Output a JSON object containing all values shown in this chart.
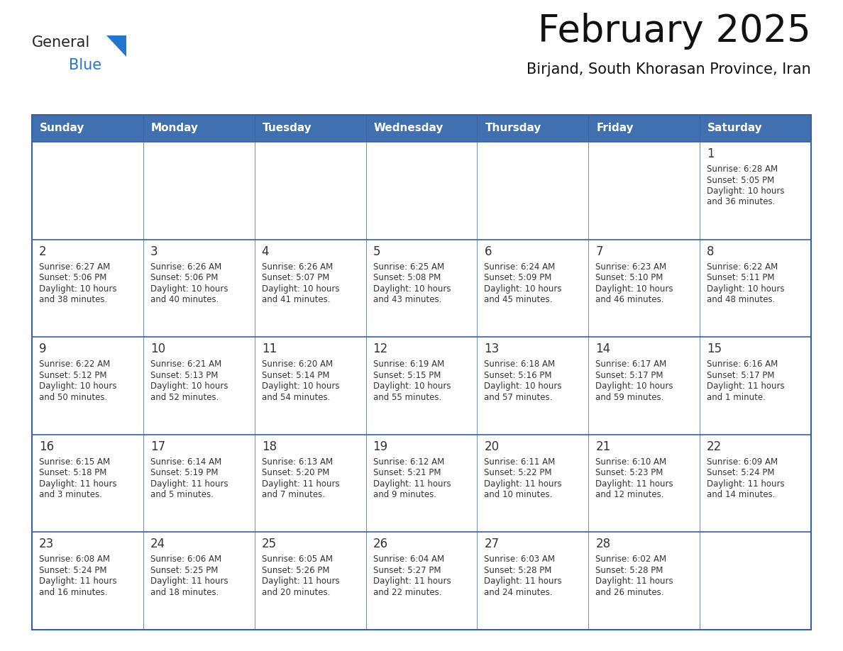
{
  "title": "February 2025",
  "subtitle": "Birjand, South Khorasan Province, Iran",
  "header_bg": "#4070B0",
  "header_text": "#FFFFFF",
  "header_days": [
    "Sunday",
    "Monday",
    "Tuesday",
    "Wednesday",
    "Thursday",
    "Friday",
    "Saturday"
  ],
  "row_bg": "#FFFFFF",
  "row_separator_color": "#3A5FA0",
  "outer_border_color": "#3A5FA0",
  "day_number_color": "#333333",
  "info_text_color": "#333333",
  "logo_general_color": "#222222",
  "logo_blue_color": "#2277CC",
  "days": [
    {
      "day": 1,
      "col": 6,
      "row": 0,
      "sunrise": "6:28 AM",
      "sunset": "5:05 PM",
      "daylight": "10 hours and 36 minutes."
    },
    {
      "day": 2,
      "col": 0,
      "row": 1,
      "sunrise": "6:27 AM",
      "sunset": "5:06 PM",
      "daylight": "10 hours and 38 minutes."
    },
    {
      "day": 3,
      "col": 1,
      "row": 1,
      "sunrise": "6:26 AM",
      "sunset": "5:06 PM",
      "daylight": "10 hours and 40 minutes."
    },
    {
      "day": 4,
      "col": 2,
      "row": 1,
      "sunrise": "6:26 AM",
      "sunset": "5:07 PM",
      "daylight": "10 hours and 41 minutes."
    },
    {
      "day": 5,
      "col": 3,
      "row": 1,
      "sunrise": "6:25 AM",
      "sunset": "5:08 PM",
      "daylight": "10 hours and 43 minutes."
    },
    {
      "day": 6,
      "col": 4,
      "row": 1,
      "sunrise": "6:24 AM",
      "sunset": "5:09 PM",
      "daylight": "10 hours and 45 minutes."
    },
    {
      "day": 7,
      "col": 5,
      "row": 1,
      "sunrise": "6:23 AM",
      "sunset": "5:10 PM",
      "daylight": "10 hours and 46 minutes."
    },
    {
      "day": 8,
      "col": 6,
      "row": 1,
      "sunrise": "6:22 AM",
      "sunset": "5:11 PM",
      "daylight": "10 hours and 48 minutes."
    },
    {
      "day": 9,
      "col": 0,
      "row": 2,
      "sunrise": "6:22 AM",
      "sunset": "5:12 PM",
      "daylight": "10 hours and 50 minutes."
    },
    {
      "day": 10,
      "col": 1,
      "row": 2,
      "sunrise": "6:21 AM",
      "sunset": "5:13 PM",
      "daylight": "10 hours and 52 minutes."
    },
    {
      "day": 11,
      "col": 2,
      "row": 2,
      "sunrise": "6:20 AM",
      "sunset": "5:14 PM",
      "daylight": "10 hours and 54 minutes."
    },
    {
      "day": 12,
      "col": 3,
      "row": 2,
      "sunrise": "6:19 AM",
      "sunset": "5:15 PM",
      "daylight": "10 hours and 55 minutes."
    },
    {
      "day": 13,
      "col": 4,
      "row": 2,
      "sunrise": "6:18 AM",
      "sunset": "5:16 PM",
      "daylight": "10 hours and 57 minutes."
    },
    {
      "day": 14,
      "col": 5,
      "row": 2,
      "sunrise": "6:17 AM",
      "sunset": "5:17 PM",
      "daylight": "10 hours and 59 minutes."
    },
    {
      "day": 15,
      "col": 6,
      "row": 2,
      "sunrise": "6:16 AM",
      "sunset": "5:17 PM",
      "daylight": "11 hours and 1 minute."
    },
    {
      "day": 16,
      "col": 0,
      "row": 3,
      "sunrise": "6:15 AM",
      "sunset": "5:18 PM",
      "daylight": "11 hours and 3 minutes."
    },
    {
      "day": 17,
      "col": 1,
      "row": 3,
      "sunrise": "6:14 AM",
      "sunset": "5:19 PM",
      "daylight": "11 hours and 5 minutes."
    },
    {
      "day": 18,
      "col": 2,
      "row": 3,
      "sunrise": "6:13 AM",
      "sunset": "5:20 PM",
      "daylight": "11 hours and 7 minutes."
    },
    {
      "day": 19,
      "col": 3,
      "row": 3,
      "sunrise": "6:12 AM",
      "sunset": "5:21 PM",
      "daylight": "11 hours and 9 minutes."
    },
    {
      "day": 20,
      "col": 4,
      "row": 3,
      "sunrise": "6:11 AM",
      "sunset": "5:22 PM",
      "daylight": "11 hours and 10 minutes."
    },
    {
      "day": 21,
      "col": 5,
      "row": 3,
      "sunrise": "6:10 AM",
      "sunset": "5:23 PM",
      "daylight": "11 hours and 12 minutes."
    },
    {
      "day": 22,
      "col": 6,
      "row": 3,
      "sunrise": "6:09 AM",
      "sunset": "5:24 PM",
      "daylight": "11 hours and 14 minutes."
    },
    {
      "day": 23,
      "col": 0,
      "row": 4,
      "sunrise": "6:08 AM",
      "sunset": "5:24 PM",
      "daylight": "11 hours and 16 minutes."
    },
    {
      "day": 24,
      "col": 1,
      "row": 4,
      "sunrise": "6:06 AM",
      "sunset": "5:25 PM",
      "daylight": "11 hours and 18 minutes."
    },
    {
      "day": 25,
      "col": 2,
      "row": 4,
      "sunrise": "6:05 AM",
      "sunset": "5:26 PM",
      "daylight": "11 hours and 20 minutes."
    },
    {
      "day": 26,
      "col": 3,
      "row": 4,
      "sunrise": "6:04 AM",
      "sunset": "5:27 PM",
      "daylight": "11 hours and 22 minutes."
    },
    {
      "day": 27,
      "col": 4,
      "row": 4,
      "sunrise": "6:03 AM",
      "sunset": "5:28 PM",
      "daylight": "11 hours and 24 minutes."
    },
    {
      "day": 28,
      "col": 5,
      "row": 4,
      "sunrise": "6:02 AM",
      "sunset": "5:28 PM",
      "daylight": "11 hours and 26 minutes."
    }
  ],
  "num_rows": 5,
  "num_cols": 7
}
